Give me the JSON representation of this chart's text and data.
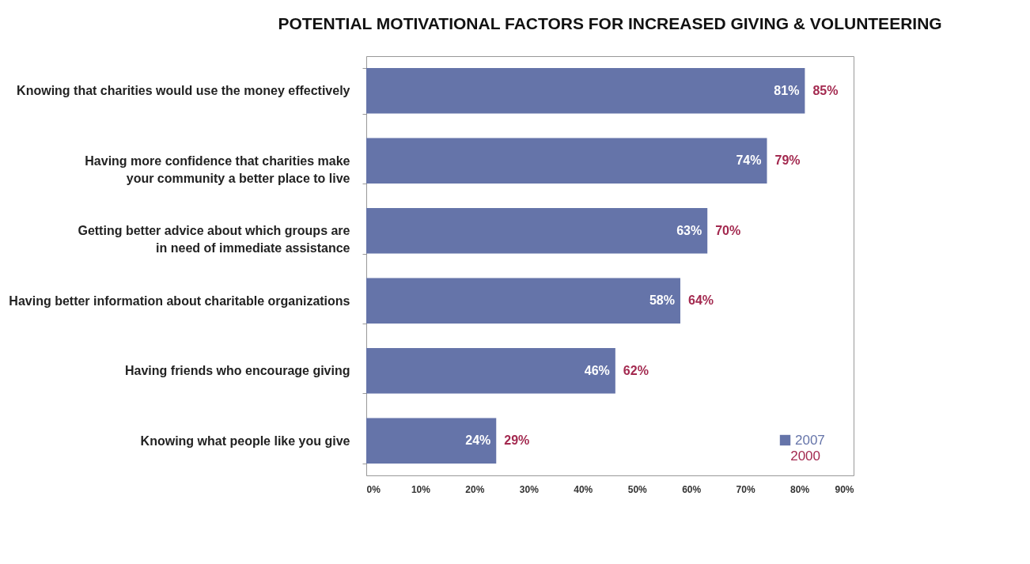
{
  "chart_data": {
    "type": "bar",
    "orientation": "horizontal",
    "title": "POTENTIAL MOTIVATIONAL FACTORS FOR INCREASED GIVING & VOLUNTEERING",
    "categories": [
      "Knowing that charities would use the money effectively",
      "Having more confidence that charities make your community a better place to live",
      "Getting better advice about which groups are in need of immediate assistance",
      "Having better information about charitable organizations",
      "Having friends who encourage giving",
      "Knowing what people like you give"
    ],
    "series": [
      {
        "name": "2007",
        "color": "#6574a9",
        "values": [
          81,
          74,
          63,
          58,
          46,
          24
        ],
        "value_labels": [
          "81%",
          "74%",
          "63%",
          "58%",
          "46%",
          "24%"
        ]
      }
    ],
    "annotations": [
      {
        "text": "85%",
        "x": 81,
        "y": "Knowing that charities would use the money effectively"
      },
      {
        "text": "79%",
        "x": 74,
        "y": "Having more confidence that charities make your community a better place to live"
      },
      {
        "text": "70%",
        "x": 63,
        "y": "Getting better advice about which groups are in need of immediate assistance"
      },
      {
        "text": "64%",
        "x": 58,
        "y": "Having better information about charitable organizations"
      },
      {
        "text": "62%",
        "x": 46,
        "y": "Having friends who encourage giving"
      },
      {
        "text": "29%",
        "x": 24,
        "y": "Knowing what people like you give"
      },
      "2000"
    ],
    "xlim": [
      0,
      90
    ],
    "xticks": [
      {
        "value": 0,
        "label": "0%"
      },
      {
        "value": 10,
        "label": "10%"
      },
      {
        "value": 20,
        "label": "20%"
      },
      {
        "value": 30,
        "label": "30%"
      },
      {
        "value": 40,
        "label": "40%"
      },
      {
        "value": 50,
        "label": "50%"
      },
      {
        "value": 60,
        "label": "60%"
      },
      {
        "value": 70,
        "label": "70%"
      },
      {
        "value": 80,
        "label": "80%"
      },
      {
        "value": 90,
        "label": "90%"
      }
    ],
    "grid": false,
    "legend": "bottom right"
  }
}
